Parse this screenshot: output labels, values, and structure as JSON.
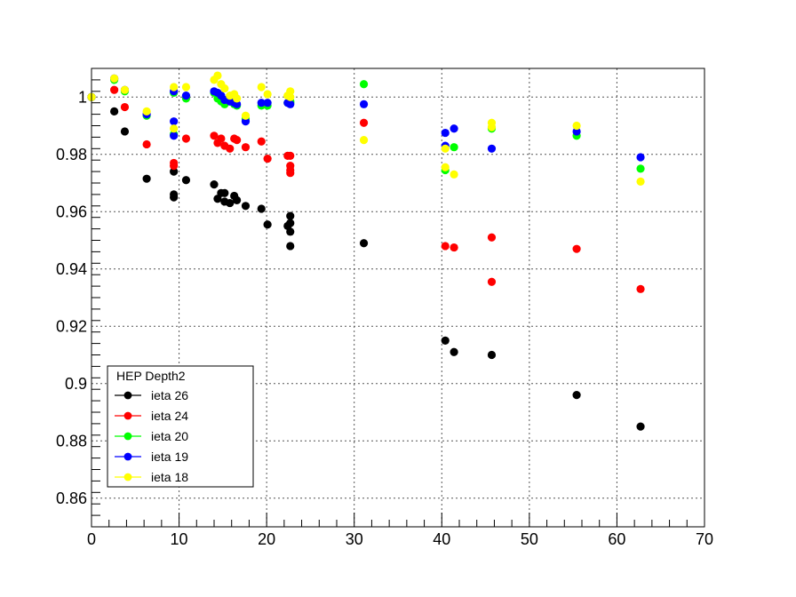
{
  "chart_data": {
    "type": "scatter",
    "title": "",
    "xlabel": "",
    "ylabel": "",
    "xlim": [
      0,
      70
    ],
    "ylim": [
      0.85,
      1.01
    ],
    "xticks": [
      "0",
      "10",
      "20",
      "30",
      "40",
      "50",
      "60",
      "70"
    ],
    "yticks": [
      "0.86",
      "0.88",
      "0.9",
      "0.92",
      "0.94",
      "0.96",
      "0.98",
      "1"
    ],
    "grid": true,
    "legend": {
      "title": "HEP Depth2",
      "position": "bottom-left"
    },
    "series": [
      {
        "name": "ieta 26",
        "color": "#000000",
        "points": [
          [
            0,
            1.0
          ],
          [
            2.6,
            0.995
          ],
          [
            3.8,
            0.988
          ],
          [
            6.3,
            0.9715
          ],
          [
            9.4,
            0.974
          ],
          [
            9.4,
            0.966
          ],
          [
            9.4,
            0.965
          ],
          [
            10.8,
            0.971
          ],
          [
            14.0,
            0.9695
          ],
          [
            14.4,
            0.9645
          ],
          [
            14.8,
            0.9665
          ],
          [
            15.2,
            0.9665
          ],
          [
            15.2,
            0.9635
          ],
          [
            15.8,
            0.963
          ],
          [
            16.3,
            0.9655
          ],
          [
            16.6,
            0.964
          ],
          [
            17.6,
            0.962
          ],
          [
            19.4,
            0.961
          ],
          [
            20.1,
            0.9555
          ],
          [
            22.4,
            0.955
          ],
          [
            22.7,
            0.9585
          ],
          [
            22.7,
            0.956
          ],
          [
            22.7,
            0.953
          ],
          [
            22.7,
            0.948
          ],
          [
            31.1,
            0.949
          ],
          [
            40.4,
            0.915
          ],
          [
            41.4,
            0.911
          ],
          [
            45.7,
            0.91
          ],
          [
            55.4,
            0.896
          ],
          [
            62.7,
            0.885
          ]
        ]
      },
      {
        "name": "ieta 24",
        "color": "#ff0000",
        "points": [
          [
            0,
            1.0
          ],
          [
            2.6,
            1.0025
          ],
          [
            3.8,
            0.9965
          ],
          [
            6.3,
            0.9835
          ],
          [
            9.4,
            0.977
          ],
          [
            9.4,
            0.976
          ],
          [
            10.8,
            0.9855
          ],
          [
            14.0,
            0.9865
          ],
          [
            14.4,
            0.984
          ],
          [
            14.8,
            0.9855
          ],
          [
            15.2,
            0.983
          ],
          [
            15.8,
            0.982
          ],
          [
            16.3,
            0.9855
          ],
          [
            16.6,
            0.985
          ],
          [
            17.6,
            0.9825
          ],
          [
            19.4,
            0.9845
          ],
          [
            20.1,
            0.9785
          ],
          [
            22.4,
            0.9795
          ],
          [
            22.7,
            0.9795
          ],
          [
            22.7,
            0.976
          ],
          [
            22.7,
            0.9745
          ],
          [
            22.7,
            0.9735
          ],
          [
            31.1,
            0.991
          ],
          [
            40.4,
            0.948
          ],
          [
            41.4,
            0.9475
          ],
          [
            45.7,
            0.951
          ],
          [
            45.7,
            0.9355
          ],
          [
            55.4,
            0.947
          ],
          [
            62.7,
            0.933
          ]
        ]
      },
      {
        "name": "ieta 20",
        "color": "#00ff00",
        "points": [
          [
            0,
            1.0
          ],
          [
            2.6,
            1.006
          ],
          [
            3.8,
            1.002
          ],
          [
            6.3,
            0.9935
          ],
          [
            9.4,
            1.0015
          ],
          [
            9.4,
            0.987
          ],
          [
            10.8,
            0.9995
          ],
          [
            14.0,
            1.0015
          ],
          [
            14.4,
            0.9995
          ],
          [
            14.8,
            0.9985
          ],
          [
            15.2,
            0.9975
          ],
          [
            15.8,
            0.9985
          ],
          [
            16.3,
            0.9975
          ],
          [
            16.6,
            0.997
          ],
          [
            17.6,
            0.9925
          ],
          [
            19.4,
            0.997
          ],
          [
            20.1,
            0.997
          ],
          [
            22.4,
            0.998
          ],
          [
            22.7,
            0.9985
          ],
          [
            22.7,
            0.998
          ],
          [
            31.1,
            1.0045
          ],
          [
            40.4,
            0.9745
          ],
          [
            41.4,
            0.9825
          ],
          [
            45.7,
            0.989
          ],
          [
            55.4,
            0.9865
          ],
          [
            62.7,
            0.975
          ]
        ]
      },
      {
        "name": "ieta 19",
        "color": "#0000ff",
        "points": [
          [
            0,
            1.0
          ],
          [
            2.6,
            1.0065
          ],
          [
            3.8,
            1.0025
          ],
          [
            6.3,
            0.994
          ],
          [
            9.4,
            1.002
          ],
          [
            9.4,
            0.9915
          ],
          [
            9.4,
            0.9865
          ],
          [
            10.8,
            1.0005
          ],
          [
            14.0,
            1.002
          ],
          [
            14.4,
            1.0015
          ],
          [
            14.8,
            1.0005
          ],
          [
            15.2,
            0.999
          ],
          [
            15.8,
            0.9985
          ],
          [
            16.3,
            0.998
          ],
          [
            16.6,
            0.9975
          ],
          [
            17.6,
            0.9915
          ],
          [
            19.4,
            0.998
          ],
          [
            20.1,
            0.998
          ],
          [
            22.4,
            0.998
          ],
          [
            22.7,
            0.9975
          ],
          [
            31.1,
            0.9975
          ],
          [
            40.4,
            0.9875
          ],
          [
            40.4,
            0.983
          ],
          [
            41.4,
            0.989
          ],
          [
            45.7,
            0.982
          ],
          [
            55.4,
            0.988
          ],
          [
            62.7,
            0.979
          ]
        ]
      },
      {
        "name": "ieta 18",
        "color": "#ffff00",
        "points": [
          [
            0,
            1.0
          ],
          [
            2.6,
            1.0065
          ],
          [
            3.8,
            1.0025
          ],
          [
            6.3,
            0.995
          ],
          [
            9.4,
            1.0035
          ],
          [
            9.4,
            0.989
          ],
          [
            10.8,
            1.0035
          ],
          [
            14.0,
            1.006
          ],
          [
            14.4,
            1.0075
          ],
          [
            14.8,
            1.0045
          ],
          [
            15.2,
            1.003
          ],
          [
            15.8,
            1.0005
          ],
          [
            16.3,
            1.001
          ],
          [
            16.6,
            0.9995
          ],
          [
            17.6,
            0.9935
          ],
          [
            19.4,
            1.0035
          ],
          [
            20.1,
            1.001
          ],
          [
            22.4,
            1.0005
          ],
          [
            22.7,
            1.002
          ],
          [
            22.7,
            1.0
          ],
          [
            31.1,
            0.985
          ],
          [
            40.4,
            0.982
          ],
          [
            40.4,
            0.9755
          ],
          [
            41.4,
            0.973
          ],
          [
            45.7,
            0.991
          ],
          [
            45.7,
            0.9895
          ],
          [
            55.4,
            0.99
          ],
          [
            62.7,
            0.9705
          ]
        ]
      }
    ]
  }
}
